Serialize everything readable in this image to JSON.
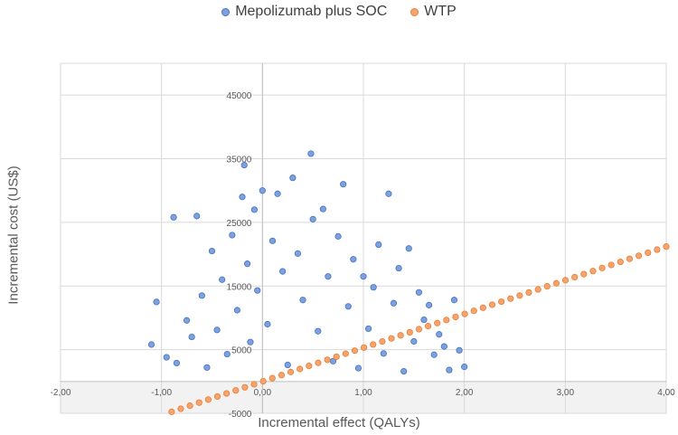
{
  "chart_data": {
    "type": "scatter",
    "title": "",
    "xlabel": "Incremental effect (QALYs)",
    "ylabel": "Incremental cost (US$)",
    "xlim": [
      -2.0,
      4.0
    ],
    "ylim": [
      -5000,
      50000
    ],
    "xticks": [
      -2.0,
      -1.0,
      0.0,
      1.0,
      2.0,
      3.0,
      4.0
    ],
    "xtick_labels": [
      "-2,00",
      "-1,00",
      "0,00",
      "1,00",
      "2,00",
      "3,00",
      "4,00"
    ],
    "yticks": [
      -5000,
      5000,
      15000,
      25000,
      35000,
      45000
    ],
    "ytick_labels": [
      "-5000",
      "5000",
      "15000",
      "25000",
      "35000",
      "45000"
    ],
    "grid": true,
    "legend_position": "top",
    "series": [
      {
        "name": "Mepolizumab plus SOC",
        "color": "#4472C4",
        "fill": "#7EA0DC",
        "points": [
          [
            -1.1,
            5800
          ],
          [
            -1.05,
            12500
          ],
          [
            -0.95,
            3800
          ],
          [
            -0.88,
            25800
          ],
          [
            -0.85,
            2900
          ],
          [
            -0.75,
            9600
          ],
          [
            -0.7,
            7000
          ],
          [
            -0.65,
            26000
          ],
          [
            -0.6,
            13500
          ],
          [
            -0.55,
            2200
          ],
          [
            -0.5,
            20500
          ],
          [
            -0.45,
            8100
          ],
          [
            -0.4,
            16000
          ],
          [
            -0.35,
            4300
          ],
          [
            -0.3,
            23000
          ],
          [
            -0.25,
            11200
          ],
          [
            -0.2,
            29000
          ],
          [
            -0.18,
            34000
          ],
          [
            -0.15,
            18500
          ],
          [
            -0.12,
            6200
          ],
          [
            -0.08,
            27000
          ],
          [
            -0.05,
            14300
          ],
          [
            0.0,
            30000
          ],
          [
            0.05,
            9000
          ],
          [
            0.1,
            22100
          ],
          [
            0.15,
            29500
          ],
          [
            0.2,
            17300
          ],
          [
            0.25,
            2600
          ],
          [
            0.3,
            32000
          ],
          [
            0.35,
            20100
          ],
          [
            0.4,
            12800
          ],
          [
            0.48,
            35800
          ],
          [
            0.5,
            25500
          ],
          [
            0.55,
            7900
          ],
          [
            0.6,
            27100
          ],
          [
            0.65,
            16500
          ],
          [
            0.7,
            3200
          ],
          [
            0.75,
            22800
          ],
          [
            0.8,
            31000
          ],
          [
            0.85,
            11800
          ],
          [
            0.9,
            19200
          ],
          [
            0.95,
            2100
          ],
          [
            1.0,
            16500
          ],
          [
            1.05,
            8300
          ],
          [
            1.1,
            14800
          ],
          [
            1.15,
            21500
          ],
          [
            1.2,
            4400
          ],
          [
            1.25,
            29500
          ],
          [
            1.3,
            12300
          ],
          [
            1.35,
            17800
          ],
          [
            1.4,
            1600
          ],
          [
            1.45,
            20900
          ],
          [
            1.5,
            6300
          ],
          [
            1.55,
            14000
          ],
          [
            1.6,
            9700
          ],
          [
            1.65,
            12000
          ],
          [
            1.7,
            4200
          ],
          [
            1.75,
            7400
          ],
          [
            1.8,
            5500
          ],
          [
            1.85,
            1800
          ],
          [
            1.9,
            12800
          ],
          [
            1.95,
            4900
          ],
          [
            2.0,
            2300
          ]
        ]
      },
      {
        "name": "WTP",
        "color": "#ED7D31",
        "fill": "#F4A46F",
        "line": {
          "x_from": -0.9,
          "x_to": 4.0,
          "slope": 5300
        }
      }
    ]
  }
}
